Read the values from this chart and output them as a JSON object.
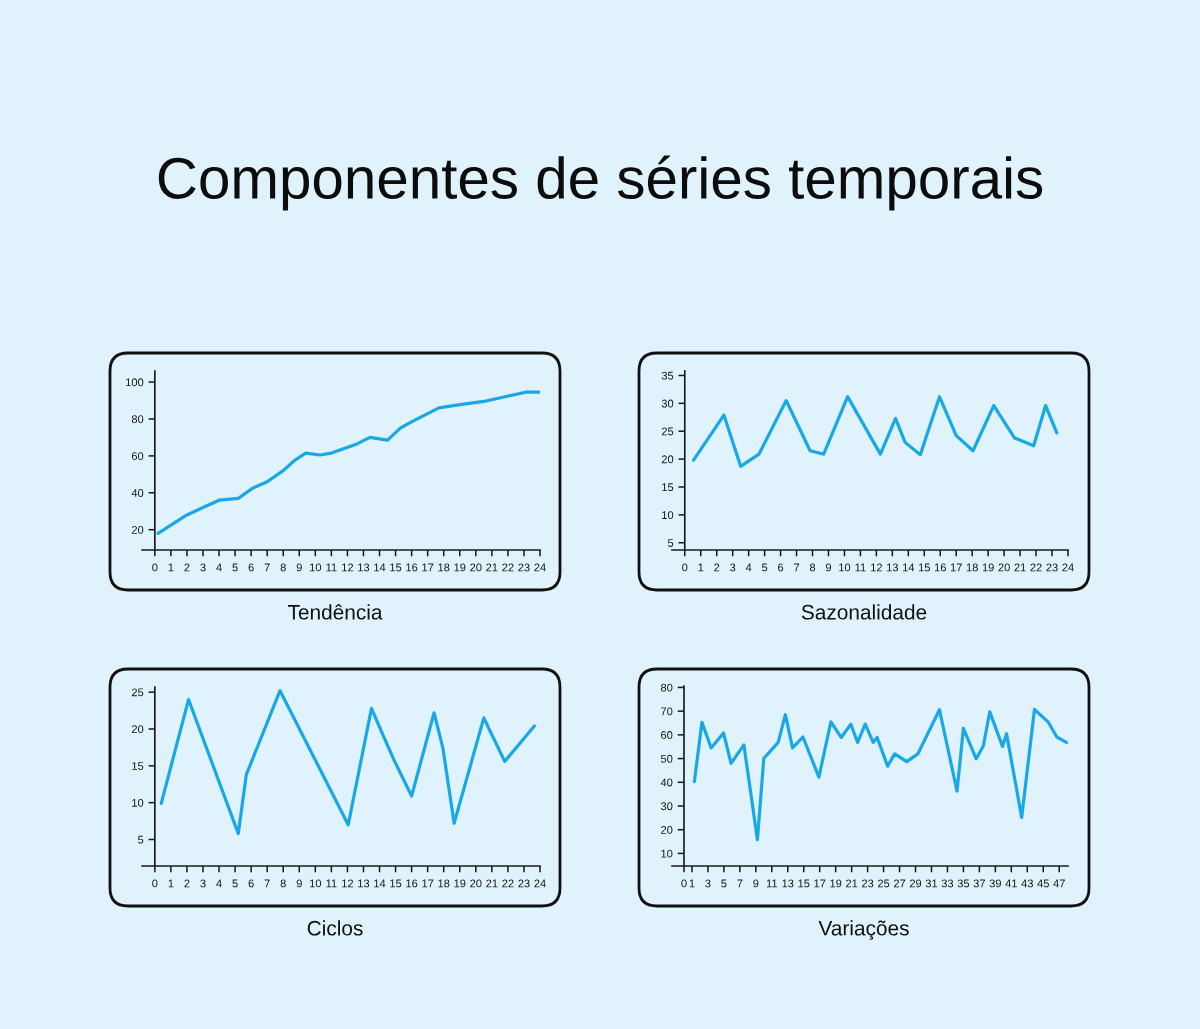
{
  "chart_data": [
    {
      "type": "line",
      "title": "Tendência",
      "annotations": [
        "Componentes de séries temporais"
      ],
      "color": "#18a8e8",
      "x": [
        0.2,
        2,
        3,
        4,
        5.2,
        6.1,
        7,
        8,
        8.7,
        9.4,
        10.3,
        11,
        12.6,
        13.4,
        14.5,
        15.3,
        15.9,
        17.7,
        18.8,
        20.5,
        23.1,
        24
      ],
      "values": [
        18,
        28,
        32,
        36,
        37,
        42.5,
        46,
        52,
        57.5,
        61.5,
        60.5,
        61.5,
        66.5,
        70,
        68.5,
        75,
        78,
        86,
        87.5,
        89.5,
        94.5,
        94.5
      ],
      "xlim": [
        -0.8,
        24
      ],
      "ylim": [
        9,
        106
      ],
      "xticks": [
        0,
        1,
        2,
        3,
        4,
        5,
        6,
        7,
        8,
        9,
        10,
        11,
        12,
        13,
        14,
        15,
        16,
        17,
        18,
        19,
        20,
        21,
        22,
        23,
        24
      ],
      "yticks": [
        20,
        40,
        60,
        80,
        100
      ]
    },
    {
      "type": "line",
      "title": "Sazonalidade",
      "color": "#18a8e8",
      "x": [
        0.55,
        2.45,
        3.5,
        4.65,
        6.35,
        7.85,
        8.7,
        10.2,
        12.25,
        13.2,
        13.8,
        14.75,
        15.95,
        17,
        18.05,
        19.35,
        20.65,
        21.85,
        22.6,
        23.3
      ],
      "values": [
        19.8,
        27.9,
        18.7,
        20.9,
        30.5,
        21.5,
        20.9,
        31.2,
        20.9,
        27.3,
        23,
        20.8,
        31.2,
        24.2,
        21.5,
        29.6,
        23.8,
        22.4,
        29.6,
        24.7
      ],
      "xlim": [
        -0.8,
        24
      ],
      "ylim": [
        3.7,
        35.8
      ],
      "xticks": [
        0,
        1,
        2,
        3,
        4,
        5,
        6,
        7,
        8,
        9,
        10,
        11,
        12,
        13,
        14,
        15,
        16,
        17,
        18,
        19,
        20,
        21,
        22,
        23,
        24
      ],
      "yticks": [
        5,
        10,
        15,
        20,
        25,
        30,
        35
      ]
    },
    {
      "type": "line",
      "title": "Ciclos",
      "color": "#18a8e8",
      "x": [
        0.4,
        2.1,
        5.2,
        5.7,
        7.8,
        12.05,
        13.5,
        14.25,
        14.9,
        16,
        17.4,
        17.95,
        18.65,
        20.5,
        21.8,
        23.65
      ],
      "values": [
        9.9,
        24,
        5.8,
        13.8,
        25.2,
        7,
        22.8,
        19,
        15.8,
        10.9,
        22.2,
        17.4,
        7.2,
        21.5,
        15.6,
        20.4
      ],
      "xlim": [
        -0.8,
        24
      ],
      "ylim": [
        1.4,
        25.7
      ],
      "xticks": [
        0,
        1,
        2,
        3,
        4,
        5,
        6,
        7,
        8,
        9,
        10,
        11,
        12,
        13,
        14,
        15,
        16,
        17,
        18,
        19,
        20,
        21,
        22,
        23,
        24
      ],
      "yticks": [
        5,
        10,
        15,
        20,
        25
      ]
    },
    {
      "type": "line",
      "title": "Variações",
      "color": "#18a8e8",
      "x": [
        1.3,
        2.25,
        3.4,
        4.95,
        5.9,
        7.5,
        9.2,
        10,
        11.8,
        12.7,
        13.6,
        14.9,
        16.9,
        18.4,
        19.7,
        20.9,
        21.75,
        22.7,
        23.7,
        24.2,
        25.5,
        26.4,
        27.9,
        29.3,
        32,
        34.2,
        35,
        36.6,
        37.5,
        38.3,
        39.9,
        40.4,
        42.3,
        43.9,
        45.6,
        46.7,
        47.9
      ],
      "values": [
        40.3,
        65.3,
        54.5,
        60.8,
        48,
        55.8,
        15.8,
        50.1,
        56.8,
        68.5,
        54.5,
        59.1,
        42.2,
        65.5,
        58.9,
        64.5,
        56.8,
        64.5,
        56.8,
        58.9,
        46.8,
        52,
        48.7,
        52,
        70.6,
        36.3,
        62.7,
        49.9,
        55.4,
        69.7,
        55.1,
        60.5,
        25.2,
        70.7,
        65.5,
        59.1,
        56.8
      ],
      "xlim": [
        -1.5,
        48.1
      ],
      "ylim": [
        4.7,
        80.6
      ],
      "xticks": [
        0,
        1,
        3,
        5,
        7,
        9,
        11,
        13,
        15,
        17,
        19,
        21,
        23,
        25,
        27,
        29,
        31,
        33,
        35,
        37,
        39,
        41,
        43,
        45,
        47
      ],
      "yticks": [
        10,
        20,
        30,
        40,
        50,
        60,
        70,
        80
      ]
    }
  ]
}
